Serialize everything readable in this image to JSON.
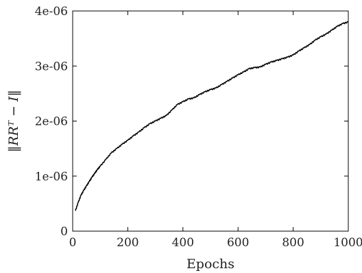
{
  "chart_data": {
    "type": "line",
    "xlabel": "Epochs",
    "ylabel": "‖RRᵀ − I‖",
    "xlim": [
      0,
      1000
    ],
    "ylim": [
      0,
      4e-06
    ],
    "xticks": [
      0,
      200,
      400,
      600,
      800,
      1000
    ],
    "xtick_labels": [
      "0",
      "200",
      "400",
      "600",
      "800",
      "1000"
    ],
    "yticks": [
      0,
      1e-06,
      2e-06,
      3e-06,
      4e-06
    ],
    "ytick_labels": [
      "0",
      "1e-06",
      "2e-06",
      "3e-06",
      "4e-06"
    ],
    "grid": false,
    "legend": "none",
    "series": [
      {
        "color": "#000000",
        "x": [
          10,
          20,
          30,
          40,
          50,
          60,
          70,
          80,
          90,
          100,
          120,
          140,
          160,
          180,
          200,
          220,
          240,
          260,
          280,
          300,
          320,
          340,
          360,
          380,
          400,
          420,
          440,
          460,
          480,
          500,
          520,
          540,
          560,
          580,
          600,
          620,
          640,
          660,
          680,
          700,
          720,
          740,
          760,
          780,
          800,
          820,
          840,
          860,
          880,
          900,
          920,
          940,
          960,
          980,
          1000
        ],
        "y": [
          3.7e-07,
          5.2e-07,
          6.5e-07,
          7.4e-07,
          8.2e-07,
          9e-07,
          9.8e-07,
          1.05e-06,
          1.12e-06,
          1.18e-06,
          1.3e-06,
          1.42e-06,
          1.5e-06,
          1.58e-06,
          1.65e-06,
          1.73e-06,
          1.8e-06,
          1.88e-06,
          1.95e-06,
          2e-06,
          2.05e-06,
          2.1e-06,
          2.2e-06,
          2.3e-06,
          2.35e-06,
          2.4e-06,
          2.42e-06,
          2.48e-06,
          2.53e-06,
          2.57e-06,
          2.6e-06,
          2.66e-06,
          2.72e-06,
          2.78e-06,
          2.84e-06,
          2.89e-06,
          2.95e-06,
          2.97e-06,
          2.98e-06,
          3.03e-06,
          3.07e-06,
          3.1e-06,
          3.13e-06,
          3.16e-06,
          3.2e-06,
          3.27e-06,
          3.33e-06,
          3.39e-06,
          3.47e-06,
          3.53e-06,
          3.58e-06,
          3.65e-06,
          3.72e-06,
          3.77e-06,
          3.8e-06
        ]
      }
    ]
  }
}
